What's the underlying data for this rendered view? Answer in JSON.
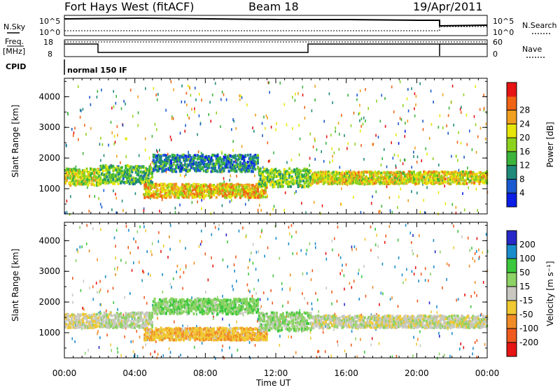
{
  "header": {
    "station": "Fort Hays West (fitACF)",
    "beam": "Beam 18",
    "date": "19/Apr/2011"
  },
  "top_panels": {
    "nsky_label": "N.Sky",
    "nsearch_label": "N.Search",
    "noise_ticks": [
      "10^5",
      "10^0"
    ],
    "freq_label_1": "Freq.",
    "freq_label_2": "[MHz]",
    "freq_ticks": [
      "18",
      "8"
    ],
    "nave_label": "Nave",
    "nave_ticks": [
      "60",
      "0"
    ],
    "cpid_label": "CPID",
    "cpid_value": "normal 150 IF"
  },
  "axes": {
    "xlabel": "Time UT",
    "ylabel": "Slant Range [km]",
    "x_ticks": [
      "00:00",
      "04:00",
      "08:00",
      "12:00",
      "16:00",
      "20:00",
      "00:00"
    ],
    "y_ticks": [
      "1000",
      "2000",
      "3000",
      "4000"
    ]
  },
  "power_scale": {
    "label": "Power [dB]",
    "ticks": [
      "4",
      "8",
      "12",
      "16",
      "20",
      "24",
      "28"
    ],
    "colors": [
      "#0a1ee6",
      "#1a5ad0",
      "#1f8a7a",
      "#3cb43c",
      "#8cd21e",
      "#e6e60a",
      "#f0a01e",
      "#f06414",
      "#e61414"
    ]
  },
  "velocity_scale": {
    "label": "Velocity [m s⁻¹]",
    "ticks": [
      "200",
      "100",
      "50",
      "15",
      "-15",
      "-50",
      "-100",
      "-200"
    ],
    "colors": [
      "#2828c8",
      "#1a8ccc",
      "#3cc83c",
      "#8cd264",
      "#c8c8c0",
      "#f0c832",
      "#f08c28",
      "#f05a1e",
      "#e61414"
    ]
  },
  "chart_data": [
    {
      "type": "heatmap",
      "title": "Power",
      "xlabel": "Time UT",
      "ylabel": "Slant Range [km]",
      "xlim": [
        0,
        24
      ],
      "ylim": [
        180,
        4600
      ],
      "bands": [
        {
          "t": [
            0,
            2
          ],
          "r": [
            1150,
            1700
          ],
          "value": 16
        },
        {
          "t": [
            2,
            5
          ],
          "r": [
            1200,
            1800
          ],
          "value": 12
        },
        {
          "t": [
            5,
            11
          ],
          "r": [
            1600,
            2150
          ],
          "value": 8
        },
        {
          "t": [
            4.5,
            11.5
          ],
          "r": [
            750,
            1200
          ],
          "value": 20
        },
        {
          "t": [
            11,
            14
          ],
          "r": [
            1100,
            1700
          ],
          "value": 14
        },
        {
          "t": [
            14,
            24
          ],
          "r": [
            1200,
            1600
          ],
          "value": 18
        }
      ]
    },
    {
      "type": "heatmap",
      "title": "Velocity",
      "xlabel": "Time UT",
      "ylabel": "Slant Range [km]",
      "xlim": [
        0,
        24
      ],
      "ylim": [
        180,
        4600
      ],
      "bands": [
        {
          "t": [
            0,
            2
          ],
          "r": [
            1200,
            1650
          ],
          "value": -10
        },
        {
          "t": [
            2,
            5
          ],
          "r": [
            1200,
            1700
          ],
          "value": 10
        },
        {
          "t": [
            5,
            11
          ],
          "r": [
            1650,
            2150
          ],
          "value": 40
        },
        {
          "t": [
            4.5,
            11.5
          ],
          "r": [
            800,
            1200
          ],
          "value": -40
        },
        {
          "t": [
            11,
            14
          ],
          "r": [
            1100,
            1700
          ],
          "value": 30
        },
        {
          "t": [
            14,
            24
          ],
          "r": [
            1200,
            1600
          ],
          "value": 0
        }
      ]
    }
  ]
}
